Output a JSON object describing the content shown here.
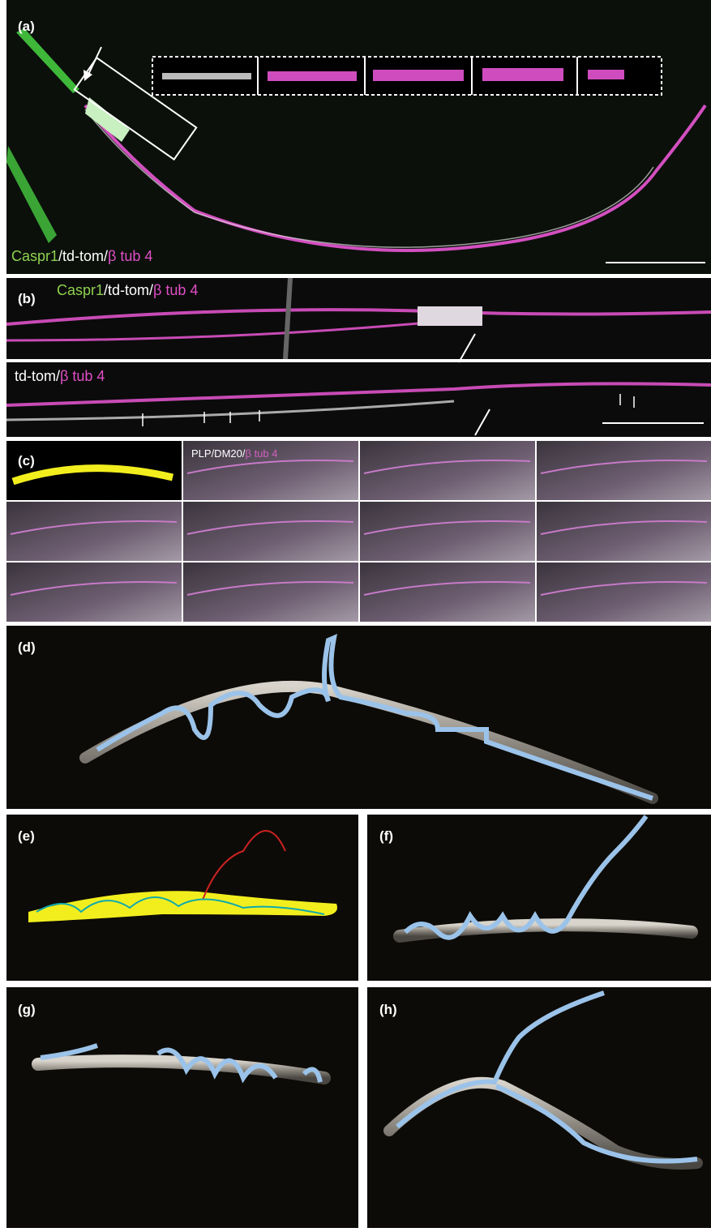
{
  "panels": {
    "a": {
      "label": "(a)",
      "legend": [
        "Caspr1",
        "/td-tom/",
        "β tub 4"
      ]
    },
    "b": {
      "label": "(b)",
      "legend": [
        "Caspr1",
        "/td-tom/",
        "β tub 4"
      ],
      "legend2": [
        "td-tom/",
        "β tub 4"
      ]
    },
    "c": {
      "label": "(c)",
      "legend": [
        "PLP/DM20/",
        "β tub 4"
      ]
    },
    "d": {
      "label": "(d)"
    },
    "e": {
      "label": "(e)"
    },
    "f": {
      "label": "(f)"
    },
    "g": {
      "label": "(g)"
    },
    "h": {
      "label": "(h)"
    }
  }
}
